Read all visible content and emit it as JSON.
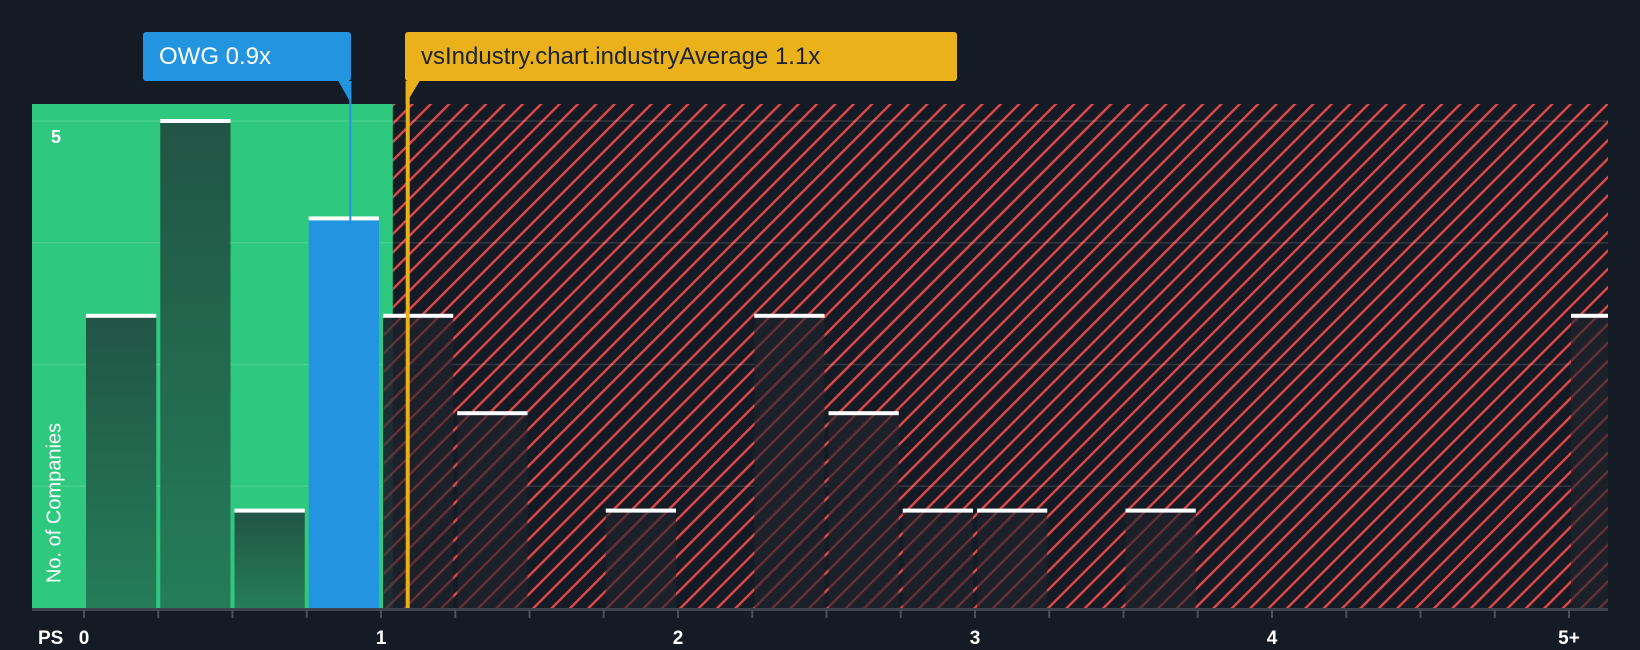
{
  "chart_data": {
    "type": "bar",
    "title": "",
    "xlabel": "PS",
    "ylabel": "No. of Companies",
    "x_ticks": [
      "0",
      "1",
      "2",
      "3",
      "4",
      "5+"
    ],
    "y_ticks": [
      "5"
    ],
    "ylim": [
      0,
      5
    ],
    "xlim": [
      0,
      5.15
    ],
    "bin_width": 0.25,
    "bins": [
      {
        "start": 0.0,
        "end": 0.25,
        "value": 3
      },
      {
        "start": 0.25,
        "end": 0.5,
        "value": 5
      },
      {
        "start": 0.5,
        "end": 0.75,
        "value": 1
      },
      {
        "start": 0.75,
        "end": 1.0,
        "value": 4,
        "highlight": "company"
      },
      {
        "start": 1.0,
        "end": 1.25,
        "value": 3
      },
      {
        "start": 1.25,
        "end": 1.5,
        "value": 2
      },
      {
        "start": 1.75,
        "end": 2.0,
        "value": 1
      },
      {
        "start": 2.25,
        "end": 2.5,
        "value": 3
      },
      {
        "start": 2.5,
        "end": 2.75,
        "value": 2
      },
      {
        "start": 2.75,
        "end": 3.0,
        "value": 1
      },
      {
        "start": 3.0,
        "end": 3.25,
        "value": 1
      },
      {
        "start": 3.5,
        "end": 3.75,
        "value": 1
      },
      {
        "start": 5.0,
        "end": 5.15,
        "value": 3,
        "label": "5+"
      }
    ],
    "annotations": [
      {
        "label": "OWG 0.9x",
        "x": 0.9,
        "color": "#2394df"
      },
      {
        "label": "vsIndustry.chart.industryAverage 1.1x",
        "x": 1.1,
        "color": "#ebb11b"
      }
    ],
    "regions": [
      {
        "name": "undervalued",
        "from": -0.18,
        "to": 1.04,
        "color": "#2ec97e"
      },
      {
        "name": "overvalued",
        "from": 1.04,
        "to": 5.15,
        "color": "#e04848",
        "pattern": "hatched"
      }
    ],
    "grid": true
  },
  "callouts": {
    "company": "OWG 0.9x",
    "industry": "vsIndustry.chart.industryAverage 1.1x"
  },
  "axis": {
    "x_title": "PS",
    "y_title": "No. of Companies",
    "y_max_label": "5"
  },
  "colors": {
    "background": "#151b24",
    "good": "#2ec97e",
    "bad": "#e04848",
    "company": "#2394df",
    "industry": "#ebb11b"
  }
}
